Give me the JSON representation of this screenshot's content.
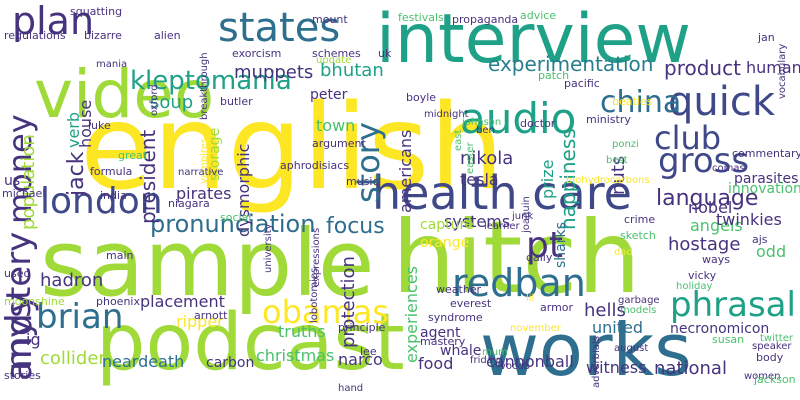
{
  "palette": {
    "purple": "#46337e",
    "indigo": "#3f4889",
    "blue": "#365c8d",
    "steel": "#2e6e8e",
    "teal": "#277f8e",
    "green_teal": "#1fa187",
    "green": "#4ac16d",
    "lime": "#a0da39",
    "yellow": "#fde725"
  },
  "words": [
    {
      "text": "english",
      "color": "#fde725"
    },
    {
      "text": "sample",
      "color": "#a0da39"
    },
    {
      "text": "hitch",
      "color": "#a0da39"
    },
    {
      "text": "interview",
      "color": "#1fa187"
    },
    {
      "text": "video",
      "color": "#a0da39"
    },
    {
      "text": "podcast",
      "color": "#a0da39"
    },
    {
      "text": "works",
      "color": "#2e6e8e"
    },
    {
      "text": "health care",
      "color": "#3f4889"
    },
    {
      "text": "quick",
      "color": "#3f4889"
    },
    {
      "text": "audio",
      "color": "#1fa187"
    },
    {
      "text": "states",
      "color": "#2e6e8e"
    },
    {
      "text": "plan",
      "color": "#46337e"
    },
    {
      "text": "london",
      "color": "#3f4889"
    },
    {
      "text": "gross",
      "color": "#3f4889"
    },
    {
      "text": "club",
      "color": "#3f4889"
    },
    {
      "text": "china",
      "color": "#2e6e8e"
    },
    {
      "text": "money",
      "color": "#46337e"
    },
    {
      "text": "story",
      "color": "#2e6e8e"
    },
    {
      "text": "redban",
      "color": "#2e6e8e"
    },
    {
      "text": "pt",
      "color": "#46337e"
    },
    {
      "text": "obamas",
      "color": "#fde725"
    },
    {
      "text": "brian",
      "color": "#2e6e8e"
    },
    {
      "text": "andy",
      "color": "#46337e"
    },
    {
      "text": "mystery",
      "color": "#46337e"
    },
    {
      "text": "phrasal",
      "color": "#1fa187"
    },
    {
      "text": "pronunciation",
      "color": "#2e6e8e"
    },
    {
      "text": "focus",
      "color": "#2e6e8e"
    },
    {
      "text": "language",
      "color": "#46337e"
    },
    {
      "text": "kleptomania",
      "color": "#1fa187"
    },
    {
      "text": "experimentation",
      "color": "#277f8e"
    },
    {
      "text": "product",
      "color": "#46337e"
    },
    {
      "text": "human",
      "color": "#46337e"
    },
    {
      "text": "muppets",
      "color": "#46337e"
    },
    {
      "text": "bhutan",
      "color": "#1fa187"
    },
    {
      "text": "soup",
      "color": "#1fa187"
    },
    {
      "text": "jack",
      "color": "#46337e"
    },
    {
      "text": "house",
      "color": "#46337e"
    },
    {
      "text": "population",
      "color": "#a0da39"
    },
    {
      "text": "verb",
      "color": "#1fa187"
    },
    {
      "text": "president",
      "color": "#46337e"
    },
    {
      "text": "nikola",
      "color": "#46337e"
    },
    {
      "text": "tesla",
      "color": "#46337e"
    },
    {
      "text": "americans",
      "color": "#46337e"
    },
    {
      "text": "prize",
      "color": "#1fa187"
    },
    {
      "text": "happiness",
      "color": "#1fa187"
    },
    {
      "text": "nuts",
      "color": "#46337e"
    },
    {
      "text": "nobel",
      "color": "#46337e"
    },
    {
      "text": "angels",
      "color": "#4ac16d"
    },
    {
      "text": "parasites",
      "color": "#46337e"
    },
    {
      "text": "town",
      "color": "#4ac16d"
    },
    {
      "text": "peter",
      "color": "#46337e"
    },
    {
      "text": "pirates",
      "color": "#46337e"
    },
    {
      "text": "dysmorphic",
      "color": "#46337e"
    },
    {
      "text": "storage",
      "color": "#a0da39"
    },
    {
      "text": "hadron",
      "color": "#46337e"
    },
    {
      "text": "collider",
      "color": "#a0da39"
    },
    {
      "text": "protection",
      "color": "#46337e"
    },
    {
      "text": "hostage",
      "color": "#46337e"
    },
    {
      "text": "twinkies",
      "color": "#46337e"
    },
    {
      "text": "odd",
      "color": "#4ac16d"
    },
    {
      "text": "systems",
      "color": "#46337e"
    },
    {
      "text": "truths",
      "color": "#4ac16d"
    },
    {
      "text": "placement",
      "color": "#46337e"
    },
    {
      "text": "ripper",
      "color": "#fde725"
    },
    {
      "text": "hells",
      "color": "#46337e"
    },
    {
      "text": "united",
      "color": "#2e6e8e"
    },
    {
      "text": "necronomicon",
      "color": "#46337e"
    },
    {
      "text": "experiences",
      "color": "#4ac16d"
    },
    {
      "text": "agent",
      "color": "#46337e"
    },
    {
      "text": "food",
      "color": "#46337e"
    },
    {
      "text": "whale",
      "color": "#46337e"
    },
    {
      "text": "cannonball",
      "color": "#46337e"
    },
    {
      "text": "witness",
      "color": "#46337e"
    },
    {
      "text": "national",
      "color": "#46337e"
    },
    {
      "text": "neardeath",
      "color": "#2e6e8e"
    },
    {
      "text": "christmas",
      "color": "#4ac16d"
    },
    {
      "text": "carbon",
      "color": "#46337e"
    },
    {
      "text": "narco",
      "color": "#46337e"
    },
    {
      "text": "orange",
      "color": "#fde725"
    },
    {
      "text": "capture",
      "color": "#a0da39"
    },
    {
      "text": "sharks",
      "color": "#2e6e8e"
    },
    {
      "text": "innovations",
      "color": "#4ac16d"
    },
    {
      "text": "ig",
      "color": "#46337e"
    },
    {
      "text": "us",
      "color": "#46337e"
    },
    {
      "text": "squatting",
      "color": "#46337e"
    },
    {
      "text": "regulations",
      "color": "#46337e"
    },
    {
      "text": "bizarre",
      "color": "#46337e"
    },
    {
      "text": "alien",
      "color": "#46337e"
    },
    {
      "text": "exorcism",
      "color": "#46337e"
    },
    {
      "text": "mount",
      "color": "#46337e"
    },
    {
      "text": "festivals",
      "color": "#4ac16d"
    },
    {
      "text": "propaganda",
      "color": "#46337e"
    },
    {
      "text": "advice",
      "color": "#4ac16d"
    },
    {
      "text": "jan",
      "color": "#46337e"
    },
    {
      "text": "vocabulary",
      "color": "#46337e"
    },
    {
      "text": "breakthrough",
      "color": "#46337e"
    },
    {
      "text": "schemes",
      "color": "#46337e"
    },
    {
      "text": "uk",
      "color": "#46337e"
    },
    {
      "text": "update",
      "color": "#a0da39"
    },
    {
      "text": "patch",
      "color": "#4ac16d"
    },
    {
      "text": "pacific",
      "color": "#46337e"
    },
    {
      "text": "mania",
      "color": "#46337e"
    },
    {
      "text": "oxford",
      "color": "#46337e"
    },
    {
      "text": "butler",
      "color": "#46337e"
    },
    {
      "text": "boyle",
      "color": "#46337e"
    },
    {
      "text": "beatles",
      "color": "#fde725"
    },
    {
      "text": "ministry",
      "color": "#46337e"
    },
    {
      "text": "midnight",
      "color": "#46337e"
    },
    {
      "text": "luke",
      "color": "#46337e"
    },
    {
      "text": "vampires",
      "color": "#fde725"
    },
    {
      "text": "johnson",
      "color": "#4ac16d"
    },
    {
      "text": "ben",
      "color": "#46337e"
    },
    {
      "text": "doctor",
      "color": "#46337e"
    },
    {
      "text": "east",
      "color": "#4ac16d"
    },
    {
      "text": "easter",
      "color": "#4ac16d"
    },
    {
      "text": "argument",
      "color": "#46337e"
    },
    {
      "text": "ponzi",
      "color": "#4ac16d"
    },
    {
      "text": "best",
      "color": "#4ac16d"
    },
    {
      "text": "comas",
      "color": "#46337e"
    },
    {
      "text": "commentary",
      "color": "#46337e"
    },
    {
      "text": "great",
      "color": "#4ac16d"
    },
    {
      "text": "narrative",
      "color": "#46337e"
    },
    {
      "text": "aphrodisiacs",
      "color": "#46337e"
    },
    {
      "text": "formula",
      "color": "#46337e"
    },
    {
      "text": "music",
      "color": "#46337e"
    },
    {
      "text": "biohydrocarbons",
      "color": "#fde725"
    },
    {
      "text": "niagara",
      "color": "#46337e"
    },
    {
      "text": "india",
      "color": "#46337e"
    },
    {
      "text": "social",
      "color": "#4ac16d"
    },
    {
      "text": "michael",
      "color": "#46337e"
    },
    {
      "text": "university",
      "color": "#46337e"
    },
    {
      "text": "expressions",
      "color": "#46337e"
    },
    {
      "text": "joaquin",
      "color": "#46337e"
    },
    {
      "text": "junk",
      "color": "#46337e"
    },
    {
      "text": "learner",
      "color": "#46337e"
    },
    {
      "text": "crime",
      "color": "#46337e"
    },
    {
      "text": "sketch",
      "color": "#4ac16d"
    },
    {
      "text": "ajs",
      "color": "#46337e"
    },
    {
      "text": "main",
      "color": "#46337e"
    },
    {
      "text": "daily",
      "color": "#46337e"
    },
    {
      "text": "dad",
      "color": "#fde725"
    },
    {
      "text": "ways",
      "color": "#46337e"
    },
    {
      "text": "used",
      "color": "#46337e"
    },
    {
      "text": "vicky",
      "color": "#46337e"
    },
    {
      "text": "holiday",
      "color": "#4ac16d"
    },
    {
      "text": "moonshine",
      "color": "#a0da39"
    },
    {
      "text": "phoenix",
      "color": "#46337e"
    },
    {
      "text": "lobotomies",
      "color": "#46337e"
    },
    {
      "text": "weather",
      "color": "#46337e"
    },
    {
      "text": "lil",
      "color": "#fde725"
    },
    {
      "text": "arnott",
      "color": "#46337e"
    },
    {
      "text": "everest",
      "color": "#46337e"
    },
    {
      "text": "armor",
      "color": "#46337e"
    },
    {
      "text": "garbage",
      "color": "#46337e"
    },
    {
      "text": "models",
      "color": "#4ac16d"
    },
    {
      "text": "principle",
      "color": "#46337e"
    },
    {
      "text": "syndrome",
      "color": "#46337e"
    },
    {
      "text": "twitter",
      "color": "#4ac16d"
    },
    {
      "text": "mastery",
      "color": "#46337e"
    },
    {
      "text": "november",
      "color": "#fde725"
    },
    {
      "text": "adverbials",
      "color": "#46337e"
    },
    {
      "text": "susan",
      "color": "#4ac16d"
    },
    {
      "text": "speaker",
      "color": "#46337e"
    },
    {
      "text": "body",
      "color": "#46337e"
    },
    {
      "text": "august",
      "color": "#46337e"
    },
    {
      "text": "lee",
      "color": "#46337e"
    },
    {
      "text": "mum",
      "color": "#4ac16d"
    },
    {
      "text": "friday",
      "color": "#46337e"
    },
    {
      "text": "vocab",
      "color": "#46337e"
    },
    {
      "text": "women",
      "color": "#46337e"
    },
    {
      "text": "stories",
      "color": "#46337e"
    },
    {
      "text": "hand",
      "color": "#46337e"
    },
    {
      "text": "jackson",
      "color": "#4ac16d"
    }
  ]
}
